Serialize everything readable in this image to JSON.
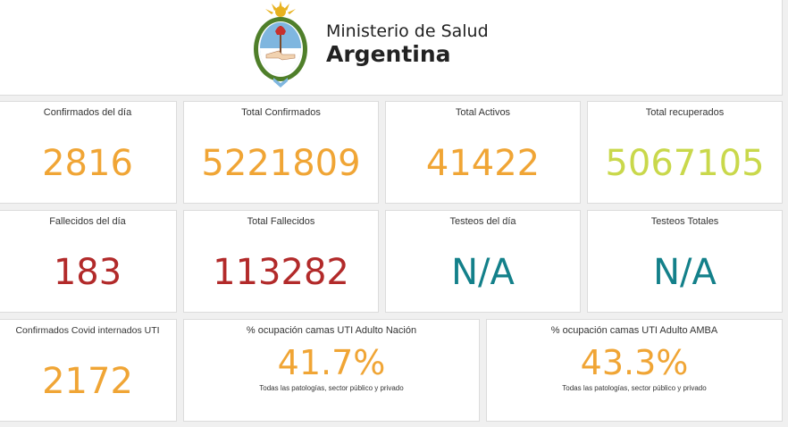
{
  "header": {
    "emblem_icon": "coat-of-arms-argentina-icon",
    "line1": "Ministerio de Salud",
    "line2": "Argentina"
  },
  "colors": {
    "orange": "#f0a535",
    "green": "#c9d84b",
    "red": "#b22a2a",
    "teal": "#13808a"
  },
  "cards": [
    {
      "title": "Confirmados del día",
      "value": "2816",
      "color": "#f0a535"
    },
    {
      "title": "Total Confirmados",
      "value": "5221809",
      "color": "#f0a535"
    },
    {
      "title": "Total Activos",
      "value": "41422",
      "color": "#f0a535"
    },
    {
      "title": "Total recuperados",
      "value": "5067105",
      "color": "#c9d84b"
    },
    {
      "title": "Fallecidos del día",
      "value": "183",
      "color": "#b22a2a"
    },
    {
      "title": "Total Fallecidos",
      "value": "113282",
      "color": "#b22a2a"
    },
    {
      "title": "Testeos del día",
      "value": "N/A",
      "color": "#13808a"
    },
    {
      "title": "Testeos Totales",
      "value": "N/A",
      "color": "#13808a"
    },
    {
      "title": "Confirmados Covid internados UTI",
      "value": "2172",
      "color": "#f0a535"
    },
    {
      "title": "% ocupación camas UTI Adulto Nación",
      "value": "41.7%",
      "note": "Todas las patologías, sector público y privado",
      "color": "#f0a535"
    },
    {
      "title": "% ocupación camas UTI Adulto AMBA",
      "value": "43.3%",
      "note": "Todas las patologías, sector público y privado",
      "color": "#f0a535"
    }
  ]
}
